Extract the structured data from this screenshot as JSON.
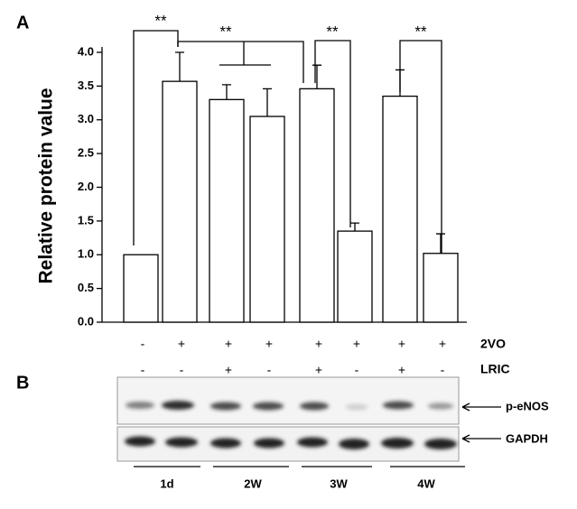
{
  "panels": {
    "a": "A",
    "b": "B"
  },
  "chart_data": {
    "type": "bar",
    "ylabel": "Relative protein value",
    "values": [
      1.0,
      3.57,
      3.3,
      3.05,
      3.46,
      1.35,
      3.35,
      1.02
    ],
    "errors": [
      null,
      0.43,
      0.22,
      0.41,
      0.35,
      0.12,
      0.39,
      0.29
    ],
    "color": "#ffffff",
    "ylim": [
      0,
      4
    ],
    "yticks": [
      {
        "value": 0,
        "label": "0.0"
      },
      0.5,
      {
        "value": 1,
        "label": "1.0"
      },
      1.5,
      {
        "value": 2,
        "label": "2.0"
      },
      2.5,
      {
        "value": 3,
        "label": "3.0"
      },
      3.5,
      {
        "value": 4,
        "label": "4.0"
      }
    ],
    "treatment_rows": [
      {
        "name": "2VO",
        "values": [
          "-",
          "+",
          "+",
          "+",
          "+",
          "+",
          "+",
          "+"
        ]
      },
      {
        "name": "LRIC",
        "values": [
          "-",
          "-",
          "+",
          "-",
          "+",
          "-",
          "+",
          "-"
        ]
      }
    ],
    "annotations": [
      "**",
      "**",
      "**",
      "**"
    ]
  },
  "blot": {
    "bands": [
      "p-eNOS",
      "GAPDH"
    ],
    "groups": [
      "1d",
      "2W",
      "3W",
      "4W"
    ]
  }
}
